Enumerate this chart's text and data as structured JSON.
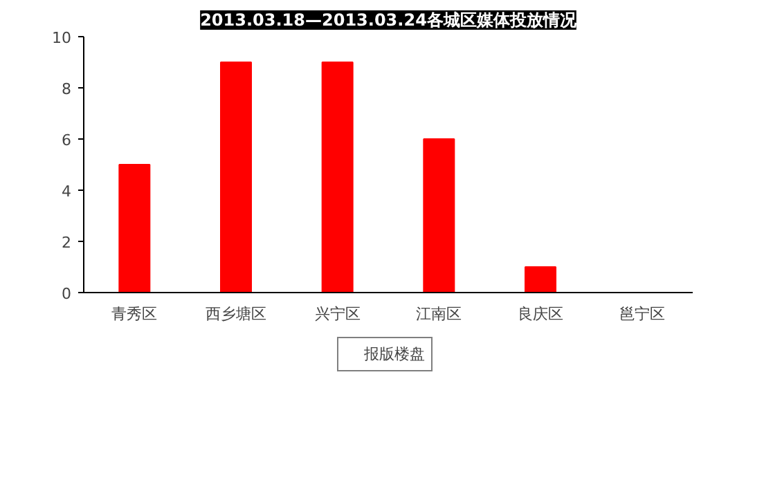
{
  "chart_data": {
    "type": "bar",
    "title": "2013.03.18—2013.03.24各城区媒体投放情况",
    "categories": [
      "青秀区",
      "西乡塘区",
      "兴宁区",
      "江南区",
      "良庆区",
      "邕宁区"
    ],
    "series": [
      {
        "name": "报版楼盘",
        "color": "#ff0000",
        "values": [
          5,
          9,
          9,
          6,
          1,
          0
        ]
      }
    ],
    "ylim": [
      0,
      10
    ],
    "yticks": [
      0,
      2,
      4,
      6,
      8,
      10
    ],
    "grid": false,
    "legend": "bottom"
  }
}
